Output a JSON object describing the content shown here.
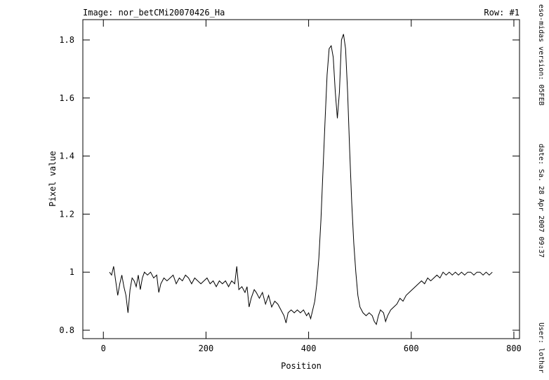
{
  "chart_data": {
    "type": "line",
    "header": "Image:  nor_betCMi20070426_Ha",
    "row_label": "Row:  #1",
    "xlabel": "Position",
    "ylabel": "Pixel value",
    "side_texts": [
      "eso-midas version: 05FEB",
      "date: Sa. 28 Apr 2007 09:37",
      "User: lothar"
    ],
    "color": "#000000",
    "xlim": [
      -40,
      811
    ],
    "ylim": [
      0.771,
      1.87
    ],
    "xticks": [
      0,
      200,
      400,
      600,
      800
    ],
    "yticks": [
      0.8,
      1,
      1.2,
      1.4,
      1.6,
      1.8
    ],
    "x": [
      12,
      16,
      20,
      24,
      28,
      32,
      36,
      40,
      44,
      48,
      52,
      56,
      60,
      64,
      68,
      72,
      76,
      80,
      86,
      92,
      98,
      104,
      108,
      112,
      118,
      124,
      130,
      136,
      142,
      148,
      154,
      160,
      166,
      172,
      178,
      184,
      190,
      196,
      202,
      208,
      214,
      220,
      226,
      232,
      238,
      244,
      250,
      256,
      260,
      264,
      270,
      276,
      280,
      284,
      288,
      294,
      298,
      304,
      310,
      316,
      322,
      328,
      334,
      340,
      346,
      352,
      356,
      360,
      366,
      372,
      378,
      384,
      390,
      396,
      400,
      404,
      408,
      412,
      416,
      420,
      424,
      428,
      432,
      436,
      440,
      444,
      448,
      452,
      456,
      460,
      464,
      468,
      472,
      476,
      480,
      484,
      488,
      492,
      496,
      500,
      506,
      512,
      518,
      524,
      528,
      532,
      536,
      540,
      546,
      550,
      554,
      560,
      566,
      572,
      578,
      584,
      590,
      596,
      602,
      608,
      614,
      620,
      626,
      632,
      638,
      644,
      650,
      656,
      662,
      668,
      674,
      680,
      686,
      692,
      698,
      704,
      710,
      716,
      722,
      728,
      734,
      740,
      746,
      752,
      758
    ],
    "values": [
      1.0,
      0.99,
      1.02,
      0.97,
      0.92,
      0.96,
      0.99,
      0.95,
      0.92,
      0.86,
      0.94,
      0.98,
      0.97,
      0.95,
      0.99,
      0.94,
      0.98,
      1.0,
      0.99,
      1.0,
      0.98,
      0.99,
      0.93,
      0.96,
      0.98,
      0.97,
      0.98,
      0.99,
      0.96,
      0.98,
      0.97,
      0.99,
      0.98,
      0.96,
      0.98,
      0.97,
      0.96,
      0.97,
      0.98,
      0.96,
      0.97,
      0.95,
      0.97,
      0.96,
      0.97,
      0.95,
      0.97,
      0.96,
      1.02,
      0.94,
      0.95,
      0.93,
      0.95,
      0.88,
      0.91,
      0.94,
      0.93,
      0.91,
      0.93,
      0.89,
      0.92,
      0.88,
      0.9,
      0.89,
      0.87,
      0.85,
      0.825,
      0.86,
      0.87,
      0.86,
      0.87,
      0.86,
      0.87,
      0.85,
      0.86,
      0.84,
      0.87,
      0.9,
      0.96,
      1.05,
      1.18,
      1.35,
      1.52,
      1.68,
      1.77,
      1.78,
      1.74,
      1.62,
      1.53,
      1.62,
      1.8,
      1.82,
      1.77,
      1.62,
      1.42,
      1.24,
      1.1,
      1.0,
      0.92,
      0.88,
      0.86,
      0.85,
      0.86,
      0.85,
      0.83,
      0.82,
      0.85,
      0.87,
      0.86,
      0.83,
      0.85,
      0.87,
      0.88,
      0.89,
      0.91,
      0.9,
      0.92,
      0.93,
      0.94,
      0.95,
      0.96,
      0.97,
      0.96,
      0.98,
      0.97,
      0.98,
      0.99,
      0.98,
      1.0,
      0.99,
      1.0,
      0.99,
      1.0,
      0.99,
      1.0,
      0.99,
      1.0,
      1.0,
      0.99,
      1.0,
      1.0,
      0.99,
      1.0,
      0.99,
      1.0
    ]
  }
}
